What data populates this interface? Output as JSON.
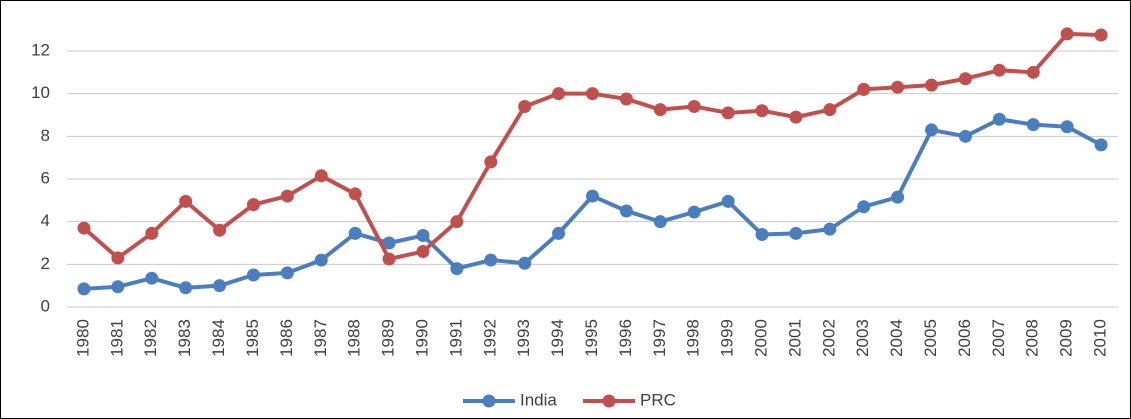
{
  "chart_data": {
    "type": "line",
    "categories": [
      "1980",
      "1981",
      "1982",
      "1983",
      "1984",
      "1985",
      "1986",
      "1987",
      "1988",
      "1989",
      "1990",
      "1991",
      "1992",
      "1993",
      "1994",
      "1995",
      "1996",
      "1997",
      "1998",
      "1999",
      "2000",
      "2001",
      "2002",
      "2003",
      "2004",
      "2005",
      "2006",
      "2007",
      "2008",
      "2009",
      "2010"
    ],
    "series": [
      {
        "name": "India",
        "color": "#4a7ebf",
        "values": [
          0.85,
          0.95,
          1.35,
          0.9,
          1.0,
          1.5,
          1.6,
          2.2,
          3.45,
          3.0,
          3.35,
          1.8,
          2.2,
          2.05,
          3.45,
          5.2,
          4.5,
          4.0,
          4.45,
          4.95,
          3.4,
          3.45,
          3.65,
          4.7,
          5.15,
          8.3,
          8.0,
          8.8,
          8.55,
          8.45,
          7.6
        ]
      },
      {
        "name": "PRC",
        "color": "#c0504d",
        "values": [
          3.7,
          2.3,
          3.45,
          4.95,
          3.6,
          4.8,
          5.2,
          6.15,
          5.3,
          2.25,
          2.6,
          4.0,
          6.8,
          9.4,
          10.0,
          10.0,
          9.75,
          9.25,
          9.4,
          9.1,
          9.2,
          8.9,
          9.25,
          10.2,
          10.3,
          10.4,
          10.7,
          11.1,
          11.0,
          12.8,
          12.75
        ]
      }
    ],
    "ylim": [
      0,
      13
    ],
    "yticks": [
      0,
      2,
      4,
      6,
      8,
      10,
      12
    ],
    "grid": true,
    "legend": "bottom"
  }
}
